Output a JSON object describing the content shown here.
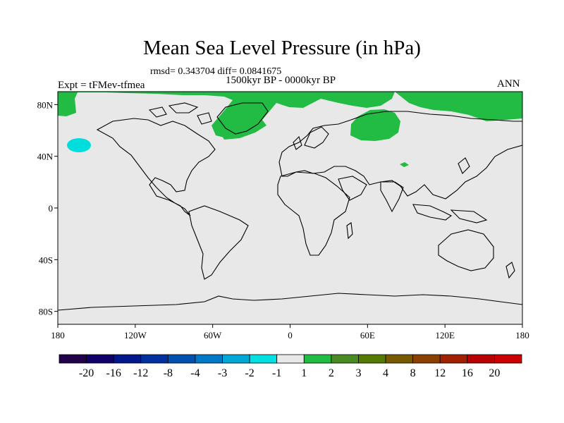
{
  "title": "Mean Sea Level Pressure (in hPa)",
  "stats": "rmsd= 0.343704 diff= 0.0841675",
  "period": "1500kyr BP - 0000kyr BP",
  "experiment": "Expt = tFMev-tfmea",
  "season": "ANN",
  "map": {
    "background_color": "#e8e8e8",
    "lat_ticks": [
      "80N",
      "40N",
      "0",
      "40S",
      "80S"
    ],
    "lon_ticks": [
      "180",
      "120W",
      "60W",
      "0",
      "60E",
      "120E",
      "180"
    ]
  },
  "anomaly_regions": [
    {
      "name": "arctic-greenland-north",
      "level": "1 to 2",
      "color": "#22bb44"
    },
    {
      "name": "north-atlantic-iceland",
      "level": "1 to 2",
      "color": "#22bb44"
    },
    {
      "name": "barents-kara-sea",
      "level": "1 to 2",
      "color": "#22bb44"
    },
    {
      "name": "east-siberian-arctic",
      "level": "1 to 2",
      "color": "#22bb44"
    },
    {
      "name": "north-pacific-low",
      "level": "-2 to -1",
      "color": "#00dddd"
    }
  ],
  "colorbar": {
    "labels": [
      "-20",
      "-16",
      "-12",
      "-8",
      "-4",
      "-3",
      "-2",
      "-1",
      "1",
      "2",
      "3",
      "4",
      "8",
      "12",
      "16",
      "20"
    ],
    "colors": [
      "#22004a",
      "#11006a",
      "#00188c",
      "#0030a0",
      "#0050b0",
      "#0078c8",
      "#00a8d8",
      "#00e0e0",
      "#e8e8e8",
      "#22bb44",
      "#4a8a22",
      "#557a00",
      "#775a00",
      "#8c4000",
      "#a02000",
      "#b80000",
      "#cc0000"
    ]
  }
}
